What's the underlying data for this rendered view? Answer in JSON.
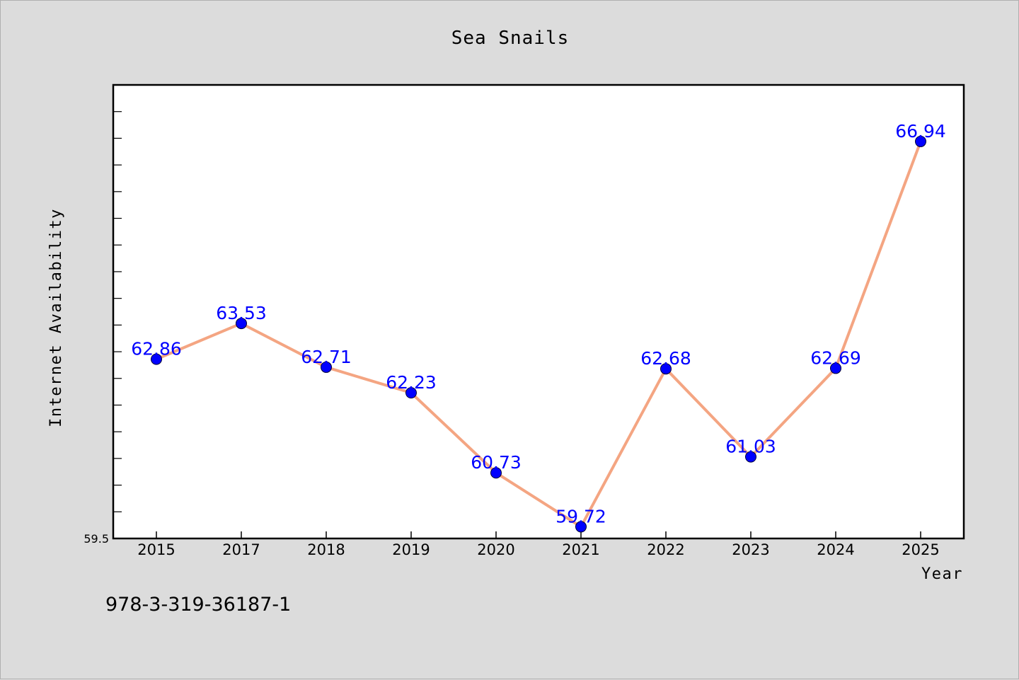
{
  "chart_data": {
    "type": "line",
    "title": "Sea Snails",
    "xlabel": "Year",
    "ylabel": "Internet Availability",
    "categories": [
      "2015",
      "2017",
      "2018",
      "2019",
      "2020",
      "2021",
      "2022",
      "2023",
      "2024",
      "2025"
    ],
    "series": [
      {
        "values": [
          62.86,
          63.53,
          62.71,
          62.23,
          60.73,
          59.72,
          62.68,
          61.03,
          62.69,
          66.94
        ]
      }
    ],
    "ylim": [
      59.5,
      68.0
    ],
    "yticks_labeled": [
      "59.5"
    ],
    "grid": false,
    "legend": "none",
    "line_color": "#f4a582",
    "marker_color": "#0000ff",
    "label_color": "#0000ff",
    "background_color": "#dcdcdc",
    "plot_background": "#ffffff"
  },
  "footnote": "978-3-319-36187-1"
}
